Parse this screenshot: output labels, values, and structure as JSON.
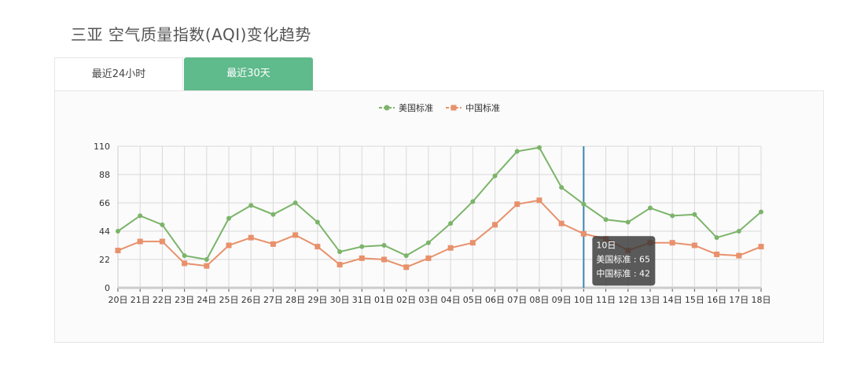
{
  "page": {
    "title": "三亚 空气质量指数(AQI)变化趋势"
  },
  "tabs": [
    {
      "label": "最近24小时",
      "active": false
    },
    {
      "label": "最近30天",
      "active": true
    }
  ],
  "legend": [
    {
      "label": "美国标准",
      "color": "#7cb46a",
      "marker": "circle"
    },
    {
      "label": "中国标准",
      "color": "#e8916c",
      "marker": "square"
    }
  ],
  "tooltip": {
    "title": "10日",
    "line1": "美国标准 : 65",
    "line2": "中国标准 : 42",
    "index": 21
  },
  "chart_data": {
    "type": "line",
    "title": "三亚 空气质量指数(AQI)变化趋势",
    "xlabel": "",
    "ylabel": "",
    "ylim": [
      0,
      110
    ],
    "yticks": [
      0,
      22,
      44,
      66,
      88,
      110
    ],
    "grid": true,
    "legend_position": "top",
    "categories": [
      "20日",
      "21日",
      "22日",
      "23日",
      "24日",
      "25日",
      "26日",
      "27日",
      "28日",
      "29日",
      "30日",
      "31日",
      "01日",
      "02日",
      "03日",
      "04日",
      "05日",
      "06日",
      "07日",
      "08日",
      "09日",
      "10日",
      "11日",
      "12日",
      "13日",
      "14日",
      "15日",
      "16日",
      "17日",
      "18日"
    ],
    "series": [
      {
        "name": "美国标准",
        "color": "#7cb46a",
        "values": [
          44,
          56,
          49,
          25,
          22,
          54,
          64,
          57,
          66,
          51,
          28,
          32,
          33,
          25,
          35,
          50,
          67,
          87,
          106,
          109,
          78,
          65,
          53,
          51,
          62,
          56,
          57,
          39,
          44,
          59
        ]
      },
      {
        "name": "中国标准",
        "color": "#e8916c",
        "values": [
          29,
          36,
          36,
          19,
          17,
          33,
          39,
          34,
          41,
          32,
          18,
          23,
          22,
          16,
          23,
          31,
          35,
          49,
          65,
          68,
          50,
          42,
          38,
          29,
          35,
          35,
          33,
          26,
          25,
          32
        ]
      }
    ]
  }
}
